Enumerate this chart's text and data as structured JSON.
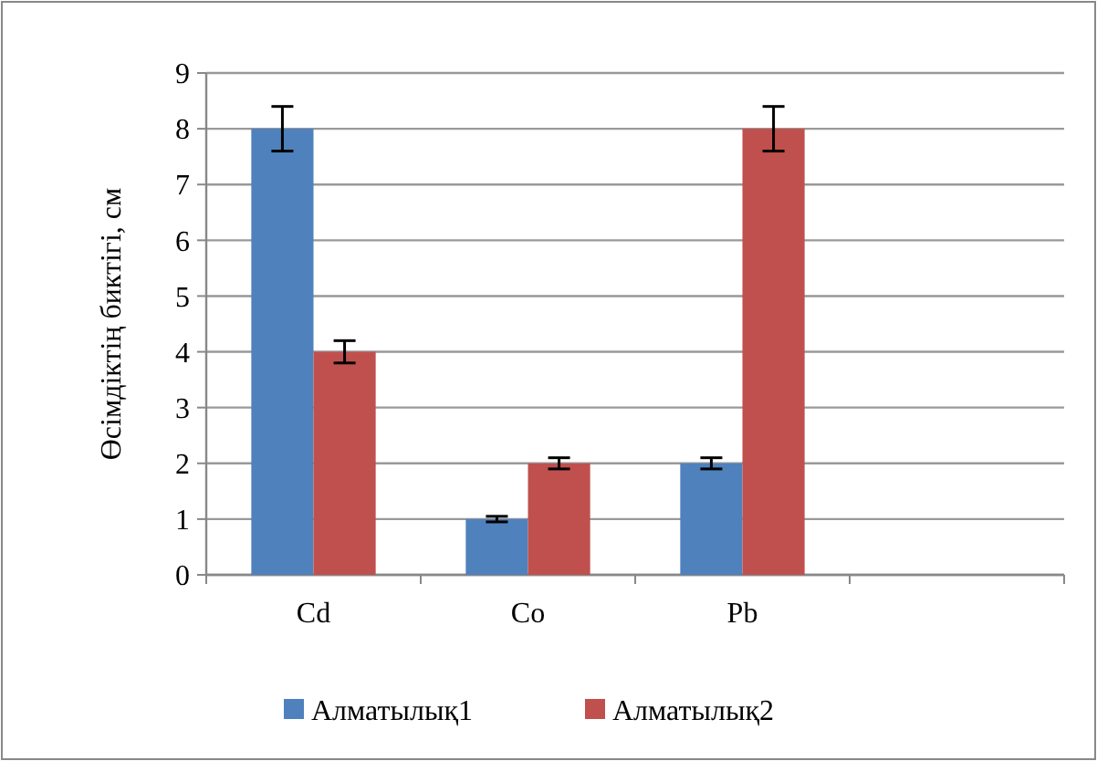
{
  "chart_data": {
    "type": "bar",
    "ylabel": "Өсімдіктің биктігі, см",
    "categories": [
      "Cd",
      "Co",
      "Pb",
      null
    ],
    "series": [
      {
        "name": "Алматылық1",
        "color": "#4f81bd",
        "values": [
          8,
          1,
          2,
          null
        ],
        "errors": [
          0.4,
          0.05,
          0.1,
          null
        ]
      },
      {
        "name": "Алматылық2",
        "color": "#c0504d",
        "values": [
          4,
          2,
          8,
          null
        ],
        "errors": [
          0.2,
          0.1,
          0.4,
          null
        ]
      }
    ],
    "ylim": [
      0,
      9
    ],
    "yticks": [
      0,
      1,
      2,
      3,
      4,
      5,
      6,
      7,
      8,
      9
    ],
    "grid": "y",
    "legend": "bottom"
  }
}
